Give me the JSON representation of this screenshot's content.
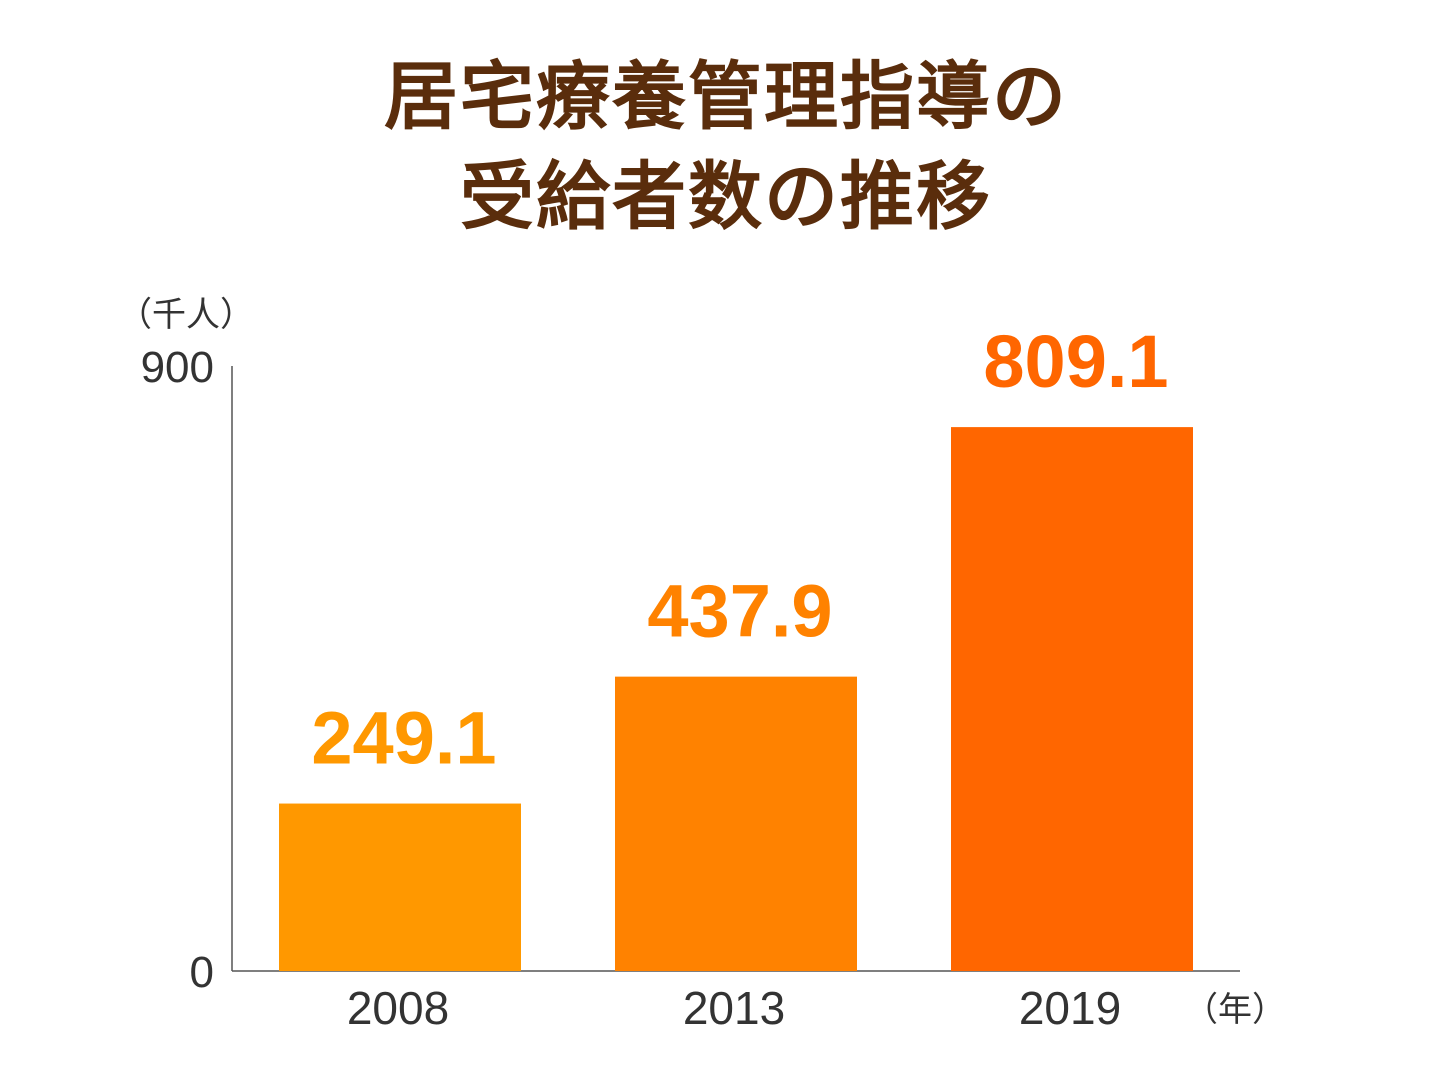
{
  "title": {
    "line1": "居宅療養管理指導の",
    "line2": "受給者数の推移"
  },
  "chart_data": {
    "type": "bar",
    "title": "居宅療養管理指導の受給者数の推移",
    "categories": [
      "2008",
      "2013",
      "2019"
    ],
    "values": [
      249.1,
      437.9,
      809.1
    ],
    "value_labels": [
      "249.1",
      "437.9",
      "809.1"
    ],
    "bar_colors": [
      "#ff9800",
      "#ff8200",
      "#ff6600"
    ],
    "ylabel": "（千人）",
    "xlabel": "（年）",
    "ylim": [
      0,
      900
    ],
    "yticks": [
      "0",
      "900"
    ],
    "grid": false,
    "legend": "none"
  }
}
